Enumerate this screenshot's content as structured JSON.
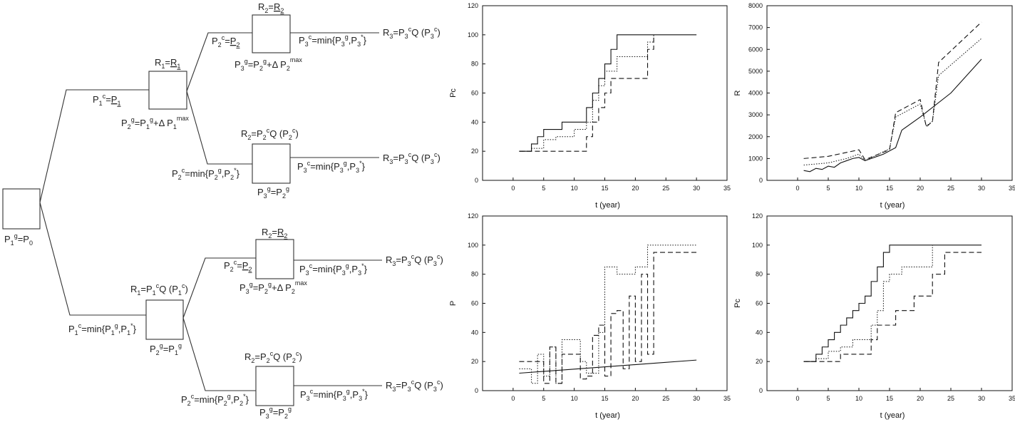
{
  "tree": {
    "labels": {
      "root": "P1g=P0",
      "upper_p1c": "P1c=P1",
      "upper_r1": "R1=R1",
      "upper_p2g": "P2g=P1g+Δ P1max",
      "uu_r2": "R2=R2",
      "uu_p2c": "P2c=P2",
      "uu_p3g": "P3g=P2g+Δ P2max",
      "uu_p3c": "P3c=min{P3g,P3*}",
      "uu_r3": "R3=P3cQ (P3c)",
      "ul_r2": "R2=P2cQ (P2c)",
      "ul_p2c": "P2c=min{P2g,P2*}",
      "ul_p3g": "P3g=P2g",
      "ul_p3c": "P3c=min{P3g,P3*}",
      "ul_r3": "R3=P3cQ (P3c)",
      "lower_p1c": "P1c=min{P1g,P1*}",
      "lower_r1": "R1=P1cQ (P1c)",
      "lower_p2g": "P2g=P1g",
      "lu_r2": "R2=R2",
      "lu_p2c": "P2c=P2",
      "lu_p3g": "P3g=P2g+Δ P2max",
      "lu_p3c": "P3c=min{P3g,P3*}",
      "lu_r3": "R3=P3cQ (P3c)",
      "ll_r2": "R2=P2cQ (P2c)",
      "ll_p2c": "P2c=min{P2g,P2*}",
      "ll_p3g": "P3g=P2g",
      "ll_p3c": "P3c=min{P3g,P3*}",
      "ll_r3": "R3=P3cQ (P3c)"
    }
  },
  "chart_data": [
    {
      "id": "pc_top",
      "type": "line",
      "ylabel": "Pc",
      "xlabel": "t (year)",
      "xlim": [
        -5,
        35
      ],
      "ylim": [
        0,
        120
      ],
      "xticks": [
        0,
        5,
        10,
        15,
        20,
        25,
        30,
        35
      ],
      "yticks": [
        0,
        20,
        40,
        60,
        80,
        100,
        120
      ],
      "series": [
        {
          "style": "solid",
          "step": true,
          "x": [
            1,
            3,
            4,
            5,
            6,
            8,
            12,
            13,
            14,
            15,
            16,
            17,
            30
          ],
          "y": [
            20,
            25,
            30,
            35,
            35,
            40,
            50,
            60,
            70,
            80,
            90,
            100,
            100
          ]
        },
        {
          "style": "dotted",
          "step": true,
          "x": [
            1,
            3,
            5,
            7,
            10,
            12,
            13,
            14,
            15,
            17,
            22,
            23
          ],
          "y": [
            20,
            22,
            28,
            30,
            35,
            40,
            55,
            65,
            75,
            85,
            95,
            100
          ]
        },
        {
          "style": "dashed",
          "step": true,
          "x": [
            1,
            12,
            13,
            14,
            15,
            16,
            22,
            23
          ],
          "y": [
            20,
            30,
            40,
            50,
            60,
            70,
            90,
            100
          ]
        }
      ]
    },
    {
      "id": "r_top",
      "type": "line",
      "ylabel": "R",
      "xlabel": "t (year)",
      "xlim": [
        -5,
        35
      ],
      "ylim": [
        0,
        8000
      ],
      "xticks": [
        0,
        5,
        10,
        15,
        20,
        25,
        30,
        35
      ],
      "yticks": [
        0,
        1000,
        2000,
        3000,
        4000,
        5000,
        6000,
        7000,
        8000
      ],
      "series": [
        {
          "style": "solid",
          "step": false,
          "x": [
            1,
            2,
            3,
            4,
            5,
            6,
            7,
            8,
            9,
            10,
            11,
            12,
            13,
            14,
            15,
            16,
            17,
            20,
            25,
            30
          ],
          "y": [
            450,
            400,
            550,
            500,
            650,
            600,
            800,
            900,
            1000,
            1050,
            900,
            1000,
            1100,
            1200,
            1350,
            1500,
            2300,
            2900,
            4000,
            5550
          ]
        },
        {
          "style": "dotted",
          "step": false,
          "x": [
            1,
            5,
            8,
            10,
            11,
            15,
            16,
            20,
            21,
            22,
            23,
            30
          ],
          "y": [
            700,
            800,
            1000,
            1200,
            900,
            1450,
            2900,
            3500,
            2500,
            2700,
            4800,
            6500
          ]
        },
        {
          "style": "dashed",
          "step": false,
          "x": [
            1,
            5,
            10,
            11,
            15,
            16,
            20,
            21,
            22,
            23,
            30
          ],
          "y": [
            1000,
            1100,
            1400,
            950,
            1400,
            3100,
            3700,
            2450,
            2700,
            5400,
            7250
          ]
        }
      ]
    },
    {
      "id": "p_bottom",
      "type": "line",
      "ylabel": "P",
      "xlabel": "t (year)",
      "xlim": [
        -5,
        35
      ],
      "ylim": [
        0,
        120
      ],
      "xticks": [
        0,
        5,
        10,
        15,
        20,
        25,
        30,
        35
      ],
      "yticks": [
        0,
        20,
        40,
        60,
        80,
        100,
        120
      ],
      "series": [
        {
          "style": "solid",
          "step": false,
          "x": [
            1,
            30
          ],
          "y": [
            12,
            21
          ]
        },
        {
          "style": "dotted",
          "step": true,
          "x": [
            1,
            3,
            4,
            5,
            6,
            7,
            8,
            11,
            12,
            14,
            15,
            17,
            20,
            22,
            30
          ],
          "y": [
            15,
            5,
            25,
            10,
            30,
            5,
            35,
            20,
            12,
            40,
            85,
            80,
            85,
            100,
            100
          ]
        },
        {
          "style": "dashed",
          "step": true,
          "x": [
            1,
            4,
            5,
            6,
            7,
            8,
            11,
            12,
            13,
            14,
            15,
            16,
            17,
            18,
            19,
            20,
            21,
            22,
            23,
            24,
            30
          ],
          "y": [
            20,
            20,
            5,
            30,
            5,
            25,
            8,
            10,
            38,
            45,
            10,
            53,
            55,
            15,
            65,
            20,
            80,
            25,
            95,
            95,
            95
          ]
        }
      ]
    },
    {
      "id": "pc_bottom",
      "type": "line",
      "ylabel": "Pc",
      "xlabel": "t (year)",
      "xlim": [
        -5,
        35
      ],
      "ylim": [
        0,
        120
      ],
      "xticks": [
        0,
        5,
        10,
        15,
        20,
        25,
        30,
        35
      ],
      "yticks": [
        0,
        20,
        40,
        60,
        80,
        100,
        120
      ],
      "series": [
        {
          "style": "solid",
          "step": true,
          "x": [
            1,
            3,
            4,
            5,
            6,
            7,
            8,
            9,
            10,
            11,
            12,
            13,
            14,
            15,
            30
          ],
          "y": [
            20,
            25,
            30,
            35,
            40,
            45,
            50,
            55,
            60,
            65,
            75,
            85,
            95,
            100,
            100
          ]
        },
        {
          "style": "dotted",
          "step": true,
          "x": [
            1,
            3,
            5,
            7,
            9,
            12,
            13,
            14,
            15,
            17,
            22
          ],
          "y": [
            20,
            22,
            27,
            30,
            35,
            45,
            55,
            75,
            80,
            85,
            100
          ]
        },
        {
          "style": "dashed",
          "step": true,
          "x": [
            1,
            7,
            12,
            13,
            16,
            19,
            22,
            24,
            30
          ],
          "y": [
            20,
            25,
            35,
            45,
            55,
            65,
            80,
            95,
            95
          ]
        }
      ]
    }
  ]
}
